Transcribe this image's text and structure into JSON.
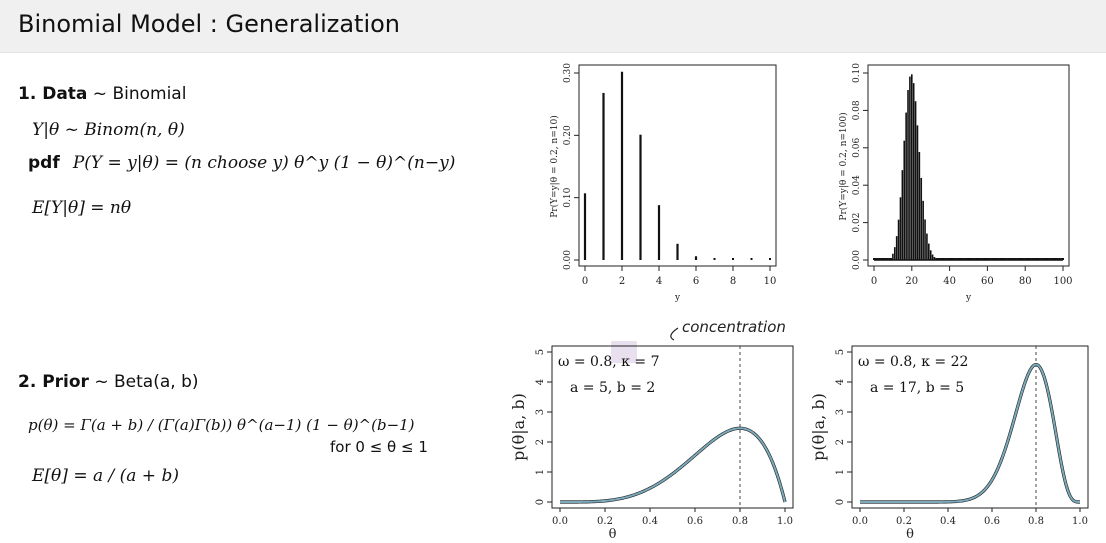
{
  "slide": {
    "title": "Binomial Model : Generalization"
  },
  "data_section": {
    "heading_bold": "1. Data",
    "heading_rest": " ~ Binomial",
    "line1": "Y|θ ~ Binom(n, θ)",
    "pdf_label": "pdf",
    "line2": "P(Y = y|θ) = (n choose y) θ^y (1 − θ)^(n−y)",
    "line3": "E[Y|θ] = nθ"
  },
  "prior_section": {
    "heading_bold": "2. Prior",
    "heading_rest": " ~ Beta(a, b)",
    "line1_left": "p(θ) = Γ(a + b) / (Γ(a)Γ(b)) θ^(a−1) (1 − θ)^(b−1)",
    "line1_right": "for 0 ≤ θ ≤ 1",
    "line2": "E[θ] = a / (a + b)"
  },
  "annotation": {
    "text": "concentration"
  },
  "chart_data": [
    {
      "type": "bar",
      "xlabel": "y",
      "ylabel": "Pr(Y=y|θ = 0.2, n=10)",
      "x": [
        0,
        1,
        2,
        3,
        4,
        5,
        6,
        7,
        8,
        9,
        10
      ],
      "values": [
        0.107,
        0.268,
        0.302,
        0.201,
        0.088,
        0.026,
        0.006,
        0.001,
        0.0,
        0.0,
        0.0
      ],
      "xticks": [
        "0",
        "2",
        "4",
        "6",
        "8",
        "10"
      ],
      "yticks": [
        "0.00",
        "0.10",
        "0.20",
        "0.30"
      ],
      "xlim": [
        0,
        10
      ],
      "ylim": [
        0,
        0.3
      ]
    },
    {
      "type": "bar",
      "xlabel": "y",
      "ylabel": "Pr(Y=y|θ = 0.2, n=100)",
      "n": 100,
      "p": 0.2,
      "xticks": [
        "0",
        "20",
        "40",
        "60",
        "80",
        "100"
      ],
      "yticks": [
        "0.00",
        "0.02",
        "0.04",
        "0.06",
        "0.08",
        "0.10"
      ],
      "xlim": [
        0,
        100
      ],
      "ylim": [
        0,
        0.1
      ]
    },
    {
      "type": "line",
      "xlabel": "θ",
      "ylabel": "p(θ|a, b)",
      "legend_line1": "ω = 0.8, κ = 7",
      "legend_line2": "a = 5, b = 2",
      "a": 5,
      "b": 2,
      "mode": 0.8,
      "xticks": [
        "0.0",
        "0.2",
        "0.4",
        "0.6",
        "0.8",
        "1.0"
      ],
      "yticks": [
        "0",
        "1",
        "2",
        "3",
        "4",
        "5"
      ],
      "xlim": [
        0,
        1
      ],
      "ylim": [
        0,
        5
      ]
    },
    {
      "type": "line",
      "xlabel": "θ",
      "ylabel": "p(θ|a, b)",
      "legend_line1": "ω = 0.8, κ = 22",
      "legend_line2": "a = 17, b = 5",
      "a": 17,
      "b": 5,
      "mode": 0.8,
      "xticks": [
        "0.0",
        "0.2",
        "0.4",
        "0.6",
        "0.8",
        "1.0"
      ],
      "yticks": [
        "0",
        "1",
        "2",
        "3",
        "4",
        "5"
      ],
      "xlim": [
        0,
        1
      ],
      "ylim": [
        0,
        5
      ]
    }
  ],
  "colors": {
    "curve": "#7aaabb",
    "bars": "#111111",
    "highlight": "#e8e0ee"
  }
}
